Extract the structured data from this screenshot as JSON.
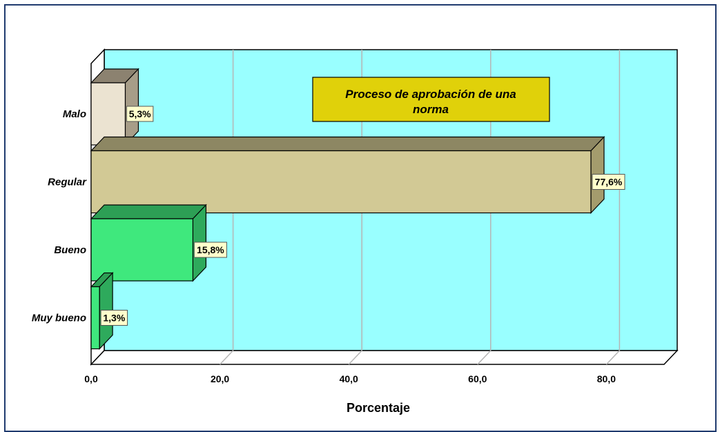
{
  "chart_data": {
    "type": "bar",
    "orientation": "horizontal",
    "title_lines": [
      "Proceso de aprobación de una",
      "norma"
    ],
    "xlabel": "Porcentaje",
    "ylabel": "",
    "xlim": [
      0,
      88
    ],
    "ticks": [
      "0,0",
      "20,0",
      "40,0",
      "60,0",
      "80,0"
    ],
    "tick_values": [
      0,
      20,
      40,
      60,
      80
    ],
    "categories": [
      "Malo",
      "Regular",
      "Bueno",
      "Muy bueno"
    ],
    "values": [
      5.3,
      77.6,
      15.8,
      1.3
    ],
    "value_labels": [
      "5,3%",
      "77,6%",
      "15,8%",
      "1,3%"
    ],
    "grid": true,
    "colors": {
      "plot_background": "#99ffff",
      "title_box": "#e0d10a",
      "label_box": "#ffffcc",
      "bars": [
        {
          "front": "#ebe3d1",
          "top": "#8c8270",
          "side": "#a79d88"
        },
        {
          "front": "#d2c995",
          "top": "#8d8763",
          "side": "#a49c6d"
        },
        {
          "front": "#3fe87d",
          "top": "#2d9f55",
          "side": "#2eaa5c"
        },
        {
          "front": "#3fe87d",
          "top": "#2d9f55",
          "side": "#2eaa5c"
        }
      ]
    }
  }
}
